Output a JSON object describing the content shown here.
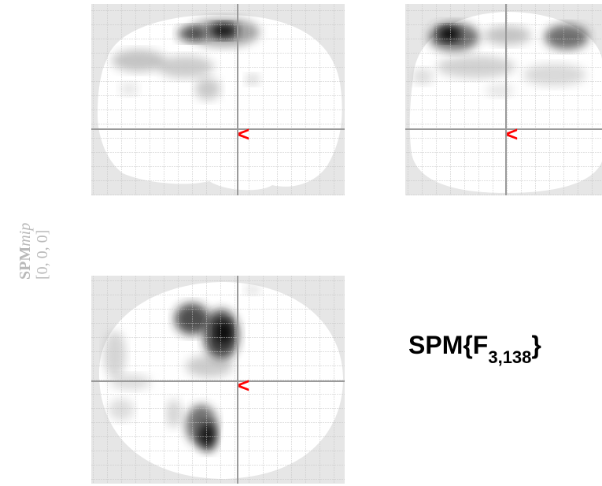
{
  "side_label": {
    "title_upright": "SPM",
    "title_italic": "mip",
    "coords": "[0, 0, 0]"
  },
  "stat_label": {
    "prefix": "SPM{F",
    "subscript": "3,138",
    "suffix": "}"
  },
  "cursor_glyph": "<",
  "colors": {
    "brain_mask": "#ffffff",
    "background": "#e6e6e6",
    "grid": "#c8c8c8",
    "crosshair": "#9a9a9a",
    "cursor": "#ff0000",
    "label_gray": "#b9b9b9",
    "activation_dark": "#000000"
  }
}
